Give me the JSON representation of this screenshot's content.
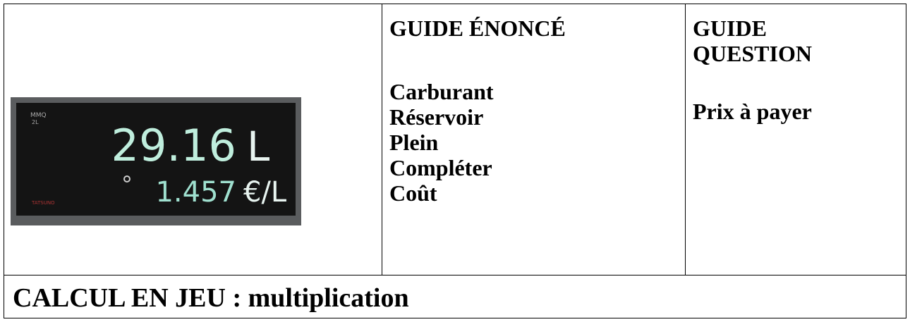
{
  "image": {
    "display": {
      "mode_top": "MMQ",
      "mode_bottom": "2L",
      "volume": "29.16",
      "volume_unit": "L",
      "price": "1.457",
      "price_unit": "€/L",
      "brand": "TATSUNO"
    }
  },
  "columns": [
    {
      "title": "GUIDE ÉNONCÉ",
      "items": [
        "Carburant",
        "Réservoir",
        "Plein",
        "Compléter",
        "Coût"
      ]
    },
    {
      "title": "GUIDE QUESTION",
      "items": [
        "Prix à payer"
      ]
    }
  ],
  "footer": "CALCUL EN JEU : multiplication"
}
